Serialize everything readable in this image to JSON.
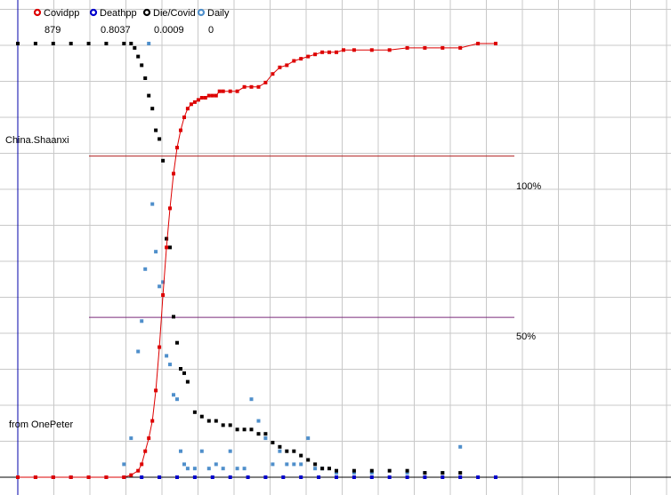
{
  "colors": {
    "covidpp": "#dd0000",
    "deathpp": "#0000cc",
    "die_covid": "#000000",
    "daily": "#4f8fcb",
    "grid": "#c8c8c8",
    "axis": "#0000aa",
    "ref100": "#b22222",
    "ref50": "#7a2a7a"
  },
  "legend": [
    {
      "key": "covidpp",
      "name": "Covidpp",
      "value": "879"
    },
    {
      "key": "deathpp",
      "name": "Deathpp",
      "value": "0.8037"
    },
    {
      "key": "die_covid",
      "name": "Die/Covid",
      "value": "0.0009"
    },
    {
      "key": "daily",
      "name": "Daily",
      "value": "0"
    }
  ],
  "labels": {
    "region": "China.Shaanxi",
    "source": "from OnePeter",
    "ref100": "100%",
    "ref50": "50%"
  },
  "chart_data": {
    "type": "scatter",
    "x_unit": "day index",
    "y_unit": "percent of series maximum",
    "xlim": [
      0,
      135
    ],
    "ylim": [
      0,
      100
    ],
    "reference_lines": [
      {
        "label": "100%",
        "y_fraction": 0.673
      },
      {
        "label": "50%",
        "y_fraction": 0.335
      }
    ],
    "series": [
      {
        "name": "Covidpp",
        "key": "covidpp",
        "connected": true,
        "x": [
          0,
          5,
          10,
          15,
          20,
          25,
          30,
          32,
          34,
          35,
          36,
          37,
          38,
          39,
          40,
          41,
          42,
          43,
          44,
          45,
          46,
          47,
          48,
          49,
          50,
          51,
          52,
          53,
          54,
          55,
          56,
          57,
          58,
          60,
          62,
          64,
          66,
          68,
          70,
          72,
          74,
          76,
          78,
          80,
          82,
          84,
          86,
          88,
          90,
          92,
          95,
          100,
          105,
          110,
          115,
          120,
          125,
          130,
          135
        ],
        "values": [
          0,
          0,
          0,
          0,
          0,
          0,
          0,
          0.5,
          1.5,
          3,
          6,
          9,
          13,
          20,
          30,
          42,
          53,
          62,
          70,
          76,
          80,
          83,
          85,
          86,
          86.5,
          87,
          87.5,
          87.5,
          88,
          88,
          88,
          89,
          89,
          89,
          89,
          90,
          90,
          90,
          91,
          93,
          94.5,
          95,
          96,
          96.5,
          97,
          97.5,
          98,
          98,
          98,
          98.5,
          98.5,
          98.5,
          98.5,
          99,
          99,
          99,
          99,
          100,
          100
        ]
      },
      {
        "name": "Deathpp",
        "key": "deathpp",
        "connected": false,
        "x": [
          0,
          5,
          10,
          15,
          20,
          25,
          30,
          35,
          40,
          45,
          50,
          55,
          60,
          65,
          70,
          75,
          80,
          85,
          90,
          95,
          100,
          105,
          110,
          115,
          120,
          125,
          130,
          135
        ],
        "values": [
          0,
          0,
          0,
          0,
          0,
          0,
          0,
          0,
          0,
          0,
          0,
          0,
          0,
          0,
          0,
          0,
          0,
          0,
          0,
          0,
          0,
          0,
          0,
          0,
          0,
          0,
          0,
          0
        ]
      },
      {
        "name": "Die/Covid",
        "key": "die_covid",
        "connected": false,
        "x": [
          0,
          5,
          10,
          15,
          20,
          25,
          30,
          32,
          33,
          34,
          35,
          36,
          37,
          38,
          39,
          40,
          41,
          42,
          43,
          44,
          45,
          46,
          47,
          48,
          50,
          52,
          54,
          56,
          58,
          60,
          62,
          64,
          66,
          68,
          70,
          72,
          74,
          76,
          78,
          80,
          82,
          84,
          86,
          88,
          90,
          95,
          100,
          105,
          110,
          115,
          120,
          125
        ],
        "values": [
          100,
          100,
          100,
          100,
          100,
          100,
          100,
          100,
          99,
          97,
          95,
          92,
          88,
          85,
          80,
          78,
          73,
          55,
          53,
          37,
          31,
          25,
          24,
          22,
          15,
          14,
          13,
          13,
          12,
          12,
          11,
          11,
          11,
          10,
          10,
          8,
          7,
          6,
          6,
          5,
          4,
          3,
          2,
          2,
          1.5,
          1.5,
          1.5,
          1.5,
          1.5,
          1,
          1,
          1
        ]
      },
      {
        "name": "Daily",
        "key": "daily",
        "connected": false,
        "x": [
          30,
          32,
          34,
          35,
          36,
          37,
          38,
          39,
          40,
          41,
          42,
          43,
          44,
          45,
          46,
          47,
          48,
          50,
          52,
          54,
          56,
          58,
          60,
          62,
          64,
          66,
          68,
          70,
          72,
          74,
          76,
          78,
          80,
          82,
          84,
          86,
          90,
          95,
          100,
          110,
          115,
          120,
          125
        ],
        "values": [
          3,
          9,
          29,
          36,
          48,
          100,
          63,
          52,
          44,
          45,
          28,
          26,
          19,
          18,
          6,
          3,
          2,
          2,
          6,
          2,
          3,
          2,
          6,
          2,
          2,
          18,
          13,
          9,
          3,
          6,
          3,
          3,
          3,
          9,
          2,
          2,
          1,
          1,
          1,
          1,
          1,
          1,
          7
        ]
      }
    ]
  }
}
